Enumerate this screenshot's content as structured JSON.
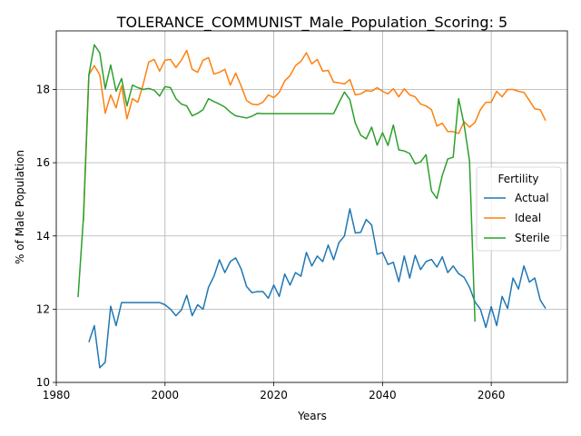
{
  "chart_data": {
    "type": "line",
    "title": "TOLERANCE_COMMUNIST_Male_Population_Scoring: 5",
    "xlabel": "Years",
    "ylabel": "% of Male Population",
    "xlim": [
      1980,
      2074
    ],
    "ylim": [
      10,
      19.6
    ],
    "xticks": [
      1980,
      2000,
      2020,
      2040,
      2060
    ],
    "yticks": [
      10,
      12,
      14,
      16,
      18
    ],
    "grid": true,
    "legend": {
      "title": "Fertility",
      "placement": "center-right"
    },
    "series": [
      {
        "name": "Actual",
        "color": "#1f77b4",
        "x": [
          1986,
          1987,
          1988,
          1989,
          1990,
          1991,
          1992,
          1993,
          1994,
          1995,
          1996,
          1997,
          1998,
          1999,
          2000,
          2001,
          2002,
          2003,
          2004,
          2005,
          2006,
          2007,
          2008,
          2009,
          2010,
          2011,
          2012,
          2013,
          2014,
          2015,
          2016,
          2017,
          2018,
          2019,
          2020,
          2021,
          2022,
          2023,
          2024,
          2025,
          2026,
          2027,
          2028,
          2029,
          2030,
          2031,
          2032,
          2033,
          2034,
          2035,
          2036,
          2037,
          2038,
          2039,
          2040,
          2041,
          2042,
          2043,
          2044,
          2045,
          2046,
          2047,
          2048,
          2049,
          2050,
          2051,
          2052,
          2053,
          2054,
          2055,
          2056,
          2057,
          2058,
          2059,
          2060,
          2061,
          2062,
          2063,
          2064,
          2065,
          2066,
          2067,
          2068,
          2069,
          2070
        ],
        "y": [
          11.1,
          11.55,
          10.4,
          10.55,
          12.08,
          11.55,
          12.18,
          12.18,
          12.18,
          12.18,
          12.18,
          12.18,
          12.18,
          12.18,
          12.12,
          12.0,
          11.82,
          11.98,
          12.38,
          11.82,
          12.12,
          12.0,
          12.6,
          12.9,
          13.35,
          13.0,
          13.3,
          13.4,
          13.1,
          12.62,
          12.45,
          12.48,
          12.48,
          12.3,
          12.66,
          12.35,
          12.96,
          12.66,
          13.0,
          12.9,
          13.55,
          13.18,
          13.45,
          13.3,
          13.75,
          13.35,
          13.82,
          14.0,
          14.74,
          14.08,
          14.1,
          14.45,
          14.3,
          13.5,
          13.55,
          13.22,
          13.28,
          12.75,
          13.45,
          12.85,
          13.47,
          13.08,
          13.3,
          13.36,
          13.15,
          13.43,
          13.0,
          13.18,
          12.97,
          12.87,
          12.6,
          12.2,
          12.0,
          11.5,
          12.07,
          11.55,
          12.35,
          12.02,
          12.85,
          12.55,
          13.18,
          12.74,
          12.85,
          12.25,
          12.02
        ]
      },
      {
        "name": "Ideal",
        "color": "#ff7f0e",
        "x": [
          1985,
          1986,
          1987,
          1988,
          1989,
          1990,
          1991,
          1992,
          1993,
          1994,
          1995,
          1996,
          1997,
          1998,
          1999,
          2000,
          2001,
          2002,
          2003,
          2004,
          2005,
          2006,
          2007,
          2008,
          2009,
          2010,
          2011,
          2012,
          2013,
          2014,
          2015,
          2016,
          2017,
          2018,
          2019,
          2020,
          2021,
          2022,
          2023,
          2024,
          2025,
          2026,
          2027,
          2028,
          2029,
          2030,
          2031,
          2032,
          2033,
          2034,
          2035,
          2036,
          2037,
          2038,
          2039,
          2040,
          2041,
          2042,
          2043,
          2044,
          2045,
          2046,
          2047,
          2048,
          2049,
          2050,
          2051,
          2052,
          2053,
          2054,
          2055,
          2056,
          2057,
          2058,
          2059,
          2060,
          2061,
          2062,
          2063,
          2064,
          2065,
          2066,
          2067,
          2068,
          2069,
          2070
        ],
        "y": [
          14.4,
          18.4,
          18.65,
          18.4,
          17.35,
          17.85,
          17.5,
          18.1,
          17.2,
          17.75,
          17.65,
          18.15,
          18.75,
          18.82,
          18.5,
          18.8,
          18.82,
          18.6,
          18.8,
          19.07,
          18.55,
          18.47,
          18.8,
          18.87,
          18.42,
          18.47,
          18.55,
          18.12,
          18.45,
          18.1,
          17.7,
          17.6,
          17.58,
          17.65,
          17.85,
          17.78,
          17.92,
          18.23,
          18.38,
          18.65,
          18.77,
          19.0,
          18.7,
          18.82,
          18.5,
          18.52,
          18.2,
          18.18,
          18.15,
          18.27,
          17.85,
          17.88,
          17.97,
          17.95,
          18.05,
          17.95,
          17.88,
          18.02,
          17.8,
          18.02,
          17.85,
          17.8,
          17.6,
          17.55,
          17.45,
          17.0,
          17.08,
          16.85,
          16.85,
          16.8,
          17.12,
          16.97,
          17.1,
          17.45,
          17.65,
          17.65,
          17.95,
          17.8,
          18.0,
          18.0,
          17.95,
          17.92,
          17.7,
          17.47,
          17.45,
          17.15
        ]
      },
      {
        "name": "Sterile",
        "color": "#2ca02c",
        "x": [
          1984,
          1985,
          1986,
          1987,
          1988,
          1989,
          1990,
          1991,
          1992,
          1993,
          1994,
          1995,
          1996,
          1997,
          1998,
          1999,
          2000,
          2001,
          2002,
          2003,
          2004,
          2005,
          2006,
          2007,
          2008,
          2009,
          2010,
          2011,
          2012,
          2013,
          2014,
          2015,
          2016,
          2017,
          2018,
          2019,
          2020,
          2021,
          2022,
          2023,
          2024,
          2025,
          2026,
          2027,
          2028,
          2029,
          2030,
          2031,
          2032,
          2033,
          2034,
          2035,
          2036,
          2037,
          2038,
          2039,
          2040,
          2041,
          2042,
          2043,
          2044,
          2045,
          2046,
          2047,
          2048,
          2049,
          2050,
          2051,
          2052,
          2053,
          2054,
          2055,
          2056,
          2057
        ],
        "y": [
          12.33,
          14.5,
          18.4,
          19.22,
          19.0,
          18.02,
          18.67,
          17.95,
          18.3,
          17.55,
          18.12,
          18.05,
          18.0,
          18.03,
          17.98,
          17.82,
          18.08,
          18.05,
          17.75,
          17.6,
          17.55,
          17.28,
          17.35,
          17.45,
          17.75,
          17.67,
          17.6,
          17.52,
          17.38,
          17.28,
          17.25,
          17.22,
          17.27,
          17.35,
          17.34,
          17.34,
          17.34,
          17.34,
          17.34,
          17.34,
          17.34,
          17.34,
          17.34,
          17.34,
          17.34,
          17.34,
          17.34,
          17.34,
          17.64,
          17.93,
          17.72,
          17.08,
          16.75,
          16.65,
          16.97,
          16.48,
          16.82,
          16.47,
          17.03,
          16.35,
          16.32,
          16.25,
          15.97,
          16.02,
          16.22,
          15.23,
          15.02,
          15.65,
          16.1,
          16.15,
          17.75,
          17.05,
          16.05,
          11.66
        ]
      }
    ]
  }
}
